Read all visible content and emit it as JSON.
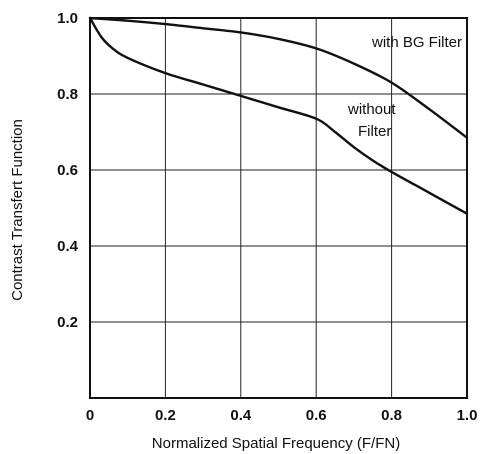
{
  "chart_data": {
    "type": "line",
    "xlabel": "Normalized Spatial Frequency (F/FN)",
    "ylabel": "Contrast Transfert Function",
    "xlim": [
      0,
      1.0
    ],
    "ylim": [
      0,
      1.0
    ],
    "grid": true,
    "x_ticks": [
      "0",
      "0.2",
      "0.4",
      "0.6",
      "0.8",
      "1.0"
    ],
    "y_ticks": [
      "0.2",
      "0.4",
      "0.6",
      "0.8",
      "1.0"
    ],
    "series": [
      {
        "name": "with BG Filter",
        "x": [
          0,
          0.1,
          0.2,
          0.3,
          0.4,
          0.5,
          0.6,
          0.7,
          0.8,
          0.9,
          1.0
        ],
        "y": [
          1.0,
          0.993,
          0.984,
          0.973,
          0.962,
          0.945,
          0.92,
          0.88,
          0.83,
          0.76,
          0.685
        ]
      },
      {
        "name": "without Filter",
        "x": [
          0,
          0.03,
          0.06,
          0.1,
          0.2,
          0.3,
          0.4,
          0.5,
          0.6,
          0.65,
          0.7,
          0.75,
          0.8,
          0.9,
          1.0
        ],
        "y": [
          1.0,
          0.95,
          0.92,
          0.895,
          0.855,
          0.825,
          0.795,
          0.765,
          0.735,
          0.7,
          0.66,
          0.625,
          0.595,
          0.54,
          0.485
        ]
      }
    ],
    "annotations": [
      {
        "id": "with_bg",
        "lines": [
          "with BG Filter"
        ]
      },
      {
        "id": "without",
        "lines": [
          "without",
          "Filter"
        ]
      }
    ]
  }
}
